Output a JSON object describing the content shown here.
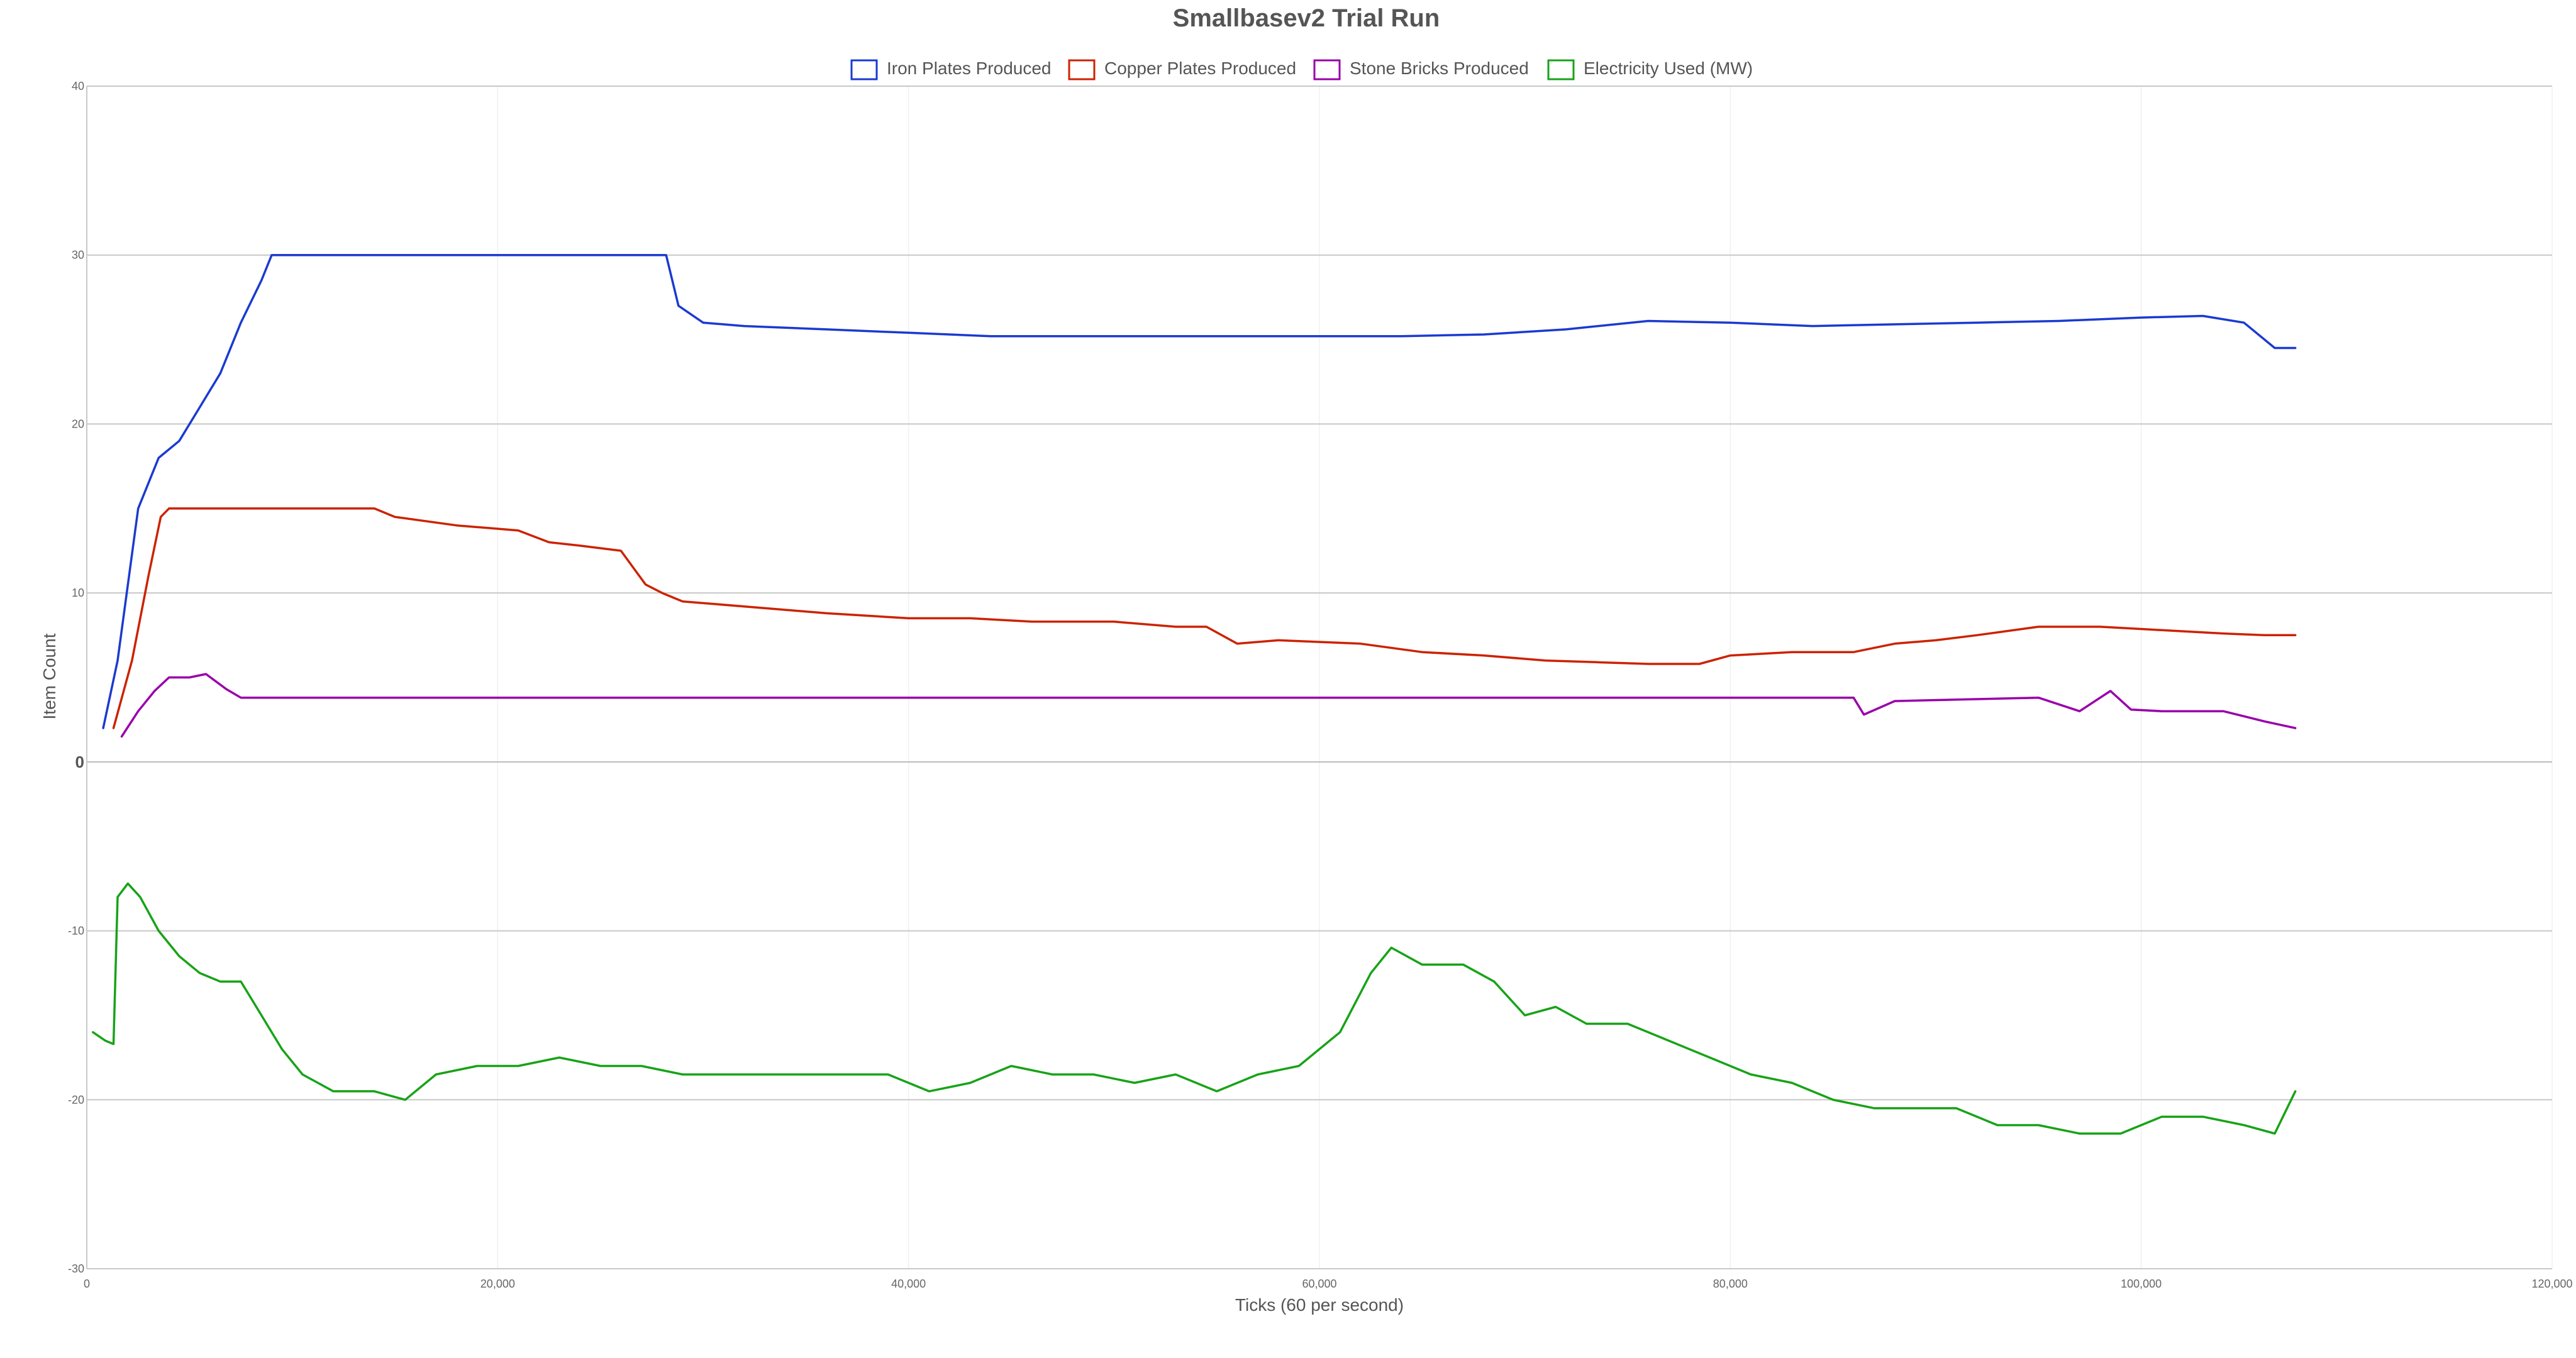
{
  "chart_data": {
    "type": "line",
    "title": "Smallbasev2 Trial Run",
    "xlabel": "Ticks (60 per second)",
    "ylabel": "Item Count",
    "xlim": [
      0,
      120000
    ],
    "ylim": [
      -30,
      40
    ],
    "x_ticks": [
      0,
      20000,
      40000,
      60000,
      80000,
      100000,
      120000
    ],
    "x_tick_labels": [
      "0",
      "20,000",
      "40,000",
      "60,000",
      "80,000",
      "100,000",
      "120,000"
    ],
    "y_ticks": [
      -30,
      -20,
      -10,
      0,
      10,
      20,
      30,
      40
    ],
    "y_tick_labels": [
      "-30",
      "-20",
      "-10",
      "0",
      "10",
      "20",
      "30",
      "40"
    ],
    "grid": true,
    "legend_position": "top",
    "series": [
      {
        "name": "Iron Plates Produced",
        "color": "#1a3ad0",
        "x": [
          800,
          1500,
          2500,
          3500,
          4500,
          5500,
          6500,
          7500,
          8500,
          9000,
          12000,
          16000,
          20000,
          24000,
          27000,
          28200,
          28800,
          30000,
          32000,
          36000,
          40000,
          44000,
          48000,
          52000,
          56000,
          60000,
          64000,
          68000,
          72000,
          76000,
          80000,
          84000,
          88000,
          92000,
          96000,
          100000,
          103000,
          105000,
          106500,
          107500
        ],
        "y": [
          2,
          6,
          15,
          18,
          19,
          21,
          23,
          26,
          28.5,
          30,
          30,
          30,
          30,
          30,
          30,
          30,
          27,
          26,
          25.8,
          25.6,
          25.4,
          25.2,
          25.2,
          25.2,
          25.2,
          25.2,
          25.2,
          25.3,
          25.6,
          26.1,
          26.0,
          25.8,
          25.9,
          26.0,
          26.1,
          26.3,
          26.4,
          26.0,
          24.5,
          24.5
        ]
      },
      {
        "name": "Copper Plates Produced",
        "color": "#cc2200",
        "x": [
          1300,
          2200,
          3000,
          3600,
          4000,
          6000,
          10000,
          14000,
          15000,
          18000,
          21000,
          22500,
          24000,
          26000,
          27200,
          28000,
          29000,
          32000,
          34000,
          36000,
          40000,
          43000,
          46000,
          50000,
          53000,
          54500,
          56000,
          58000,
          62000,
          65000,
          68000,
          71000,
          73500,
          76000,
          78500,
          80000,
          83000,
          86000,
          88000,
          90000,
          92000,
          95000,
          98000,
          101000,
          104000,
          106000,
          107500
        ],
        "y": [
          2,
          6,
          11,
          14.5,
          15,
          15,
          15,
          15,
          14.5,
          14,
          13.7,
          13,
          12.8,
          12.5,
          10.5,
          10,
          9.5,
          9.2,
          9.0,
          8.8,
          8.5,
          8.5,
          8.3,
          8.3,
          8.0,
          8.0,
          7.0,
          7.2,
          7.0,
          6.5,
          6.3,
          6.0,
          5.9,
          5.8,
          5.8,
          6.3,
          6.5,
          6.5,
          7.0,
          7.2,
          7.5,
          8.0,
          8.0,
          7.8,
          7.6,
          7.5,
          7.5
        ]
      },
      {
        "name": "Stone Bricks Produced",
        "color": "#9900aa",
        "x": [
          1700,
          2500,
          3300,
          4000,
          5000,
          5800,
          6800,
          7500,
          10000,
          20000,
          30000,
          40000,
          50000,
          60000,
          70000,
          80000,
          86000,
          86500,
          88000,
          95000,
          97000,
          98500,
          99500,
          101000,
          104000,
          106000,
          107500
        ],
        "y": [
          1.5,
          3,
          4.2,
          5,
          5,
          5.2,
          4.3,
          3.8,
          3.8,
          3.8,
          3.8,
          3.8,
          3.8,
          3.8,
          3.8,
          3.8,
          3.8,
          2.8,
          3.6,
          3.8,
          3.0,
          4.2,
          3.1,
          3.0,
          3.0,
          2.4,
          2.0
        ]
      },
      {
        "name": "Electricity Used (MW)",
        "color": "#17a317",
        "x": [
          300,
          900,
          1300,
          1500,
          2000,
          2600,
          3500,
          4500,
          5500,
          6500,
          7000,
          7500,
          8500,
          9500,
          10500,
          12000,
          14000,
          15500,
          17000,
          19000,
          21000,
          23000,
          25000,
          27000,
          29000,
          31000,
          33000,
          35000,
          37000,
          39000,
          41000,
          43000,
          45000,
          47000,
          49000,
          51000,
          53000,
          55000,
          57000,
          59000,
          61000,
          62500,
          63500,
          65000,
          67000,
          68500,
          70000,
          71500,
          73000,
          75000,
          77000,
          79000,
          81000,
          83000,
          85000,
          87000,
          89000,
          91000,
          93000,
          95000,
          97000,
          99000,
          101000,
          103000,
          105000,
          106500,
          107500
        ],
        "y": [
          -16,
          -16.5,
          -16.7,
          -8,
          -7.2,
          -8,
          -10,
          -11.5,
          -12.5,
          -13,
          -13,
          -13,
          -15,
          -17,
          -18.5,
          -19.5,
          -19.5,
          -20,
          -18.5,
          -18,
          -18,
          -17.5,
          -18,
          -18,
          -18.5,
          -18.5,
          -18.5,
          -18.5,
          -18.5,
          -18.5,
          -19.5,
          -19,
          -18,
          -18.5,
          -18.5,
          -19,
          -18.5,
          -19.5,
          -18.5,
          -18,
          -16,
          -12.5,
          -11,
          -12,
          -12,
          -13,
          -15,
          -14.5,
          -15.5,
          -15.5,
          -16.5,
          -17.5,
          -18.5,
          -19,
          -20,
          -20.5,
          -20.5,
          -20.5,
          -21.5,
          -21.5,
          -22,
          -22,
          -21,
          -21,
          -21.5,
          -22,
          -19.5
        ]
      }
    ]
  }
}
